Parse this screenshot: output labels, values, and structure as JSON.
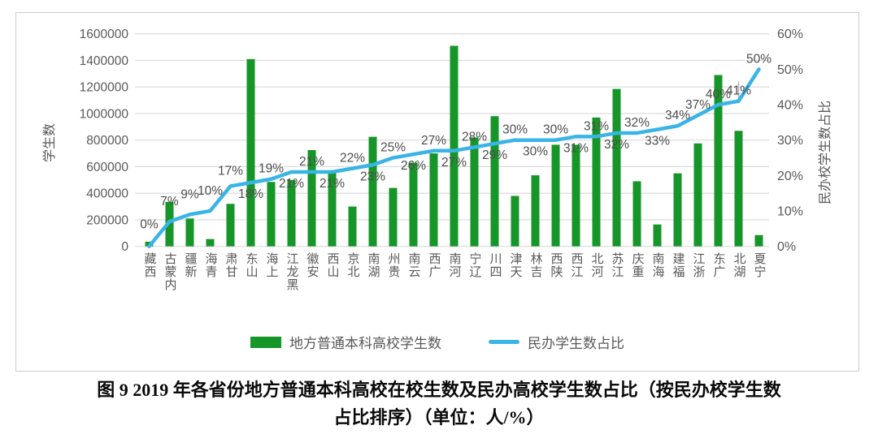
{
  "figure": {
    "caption_line1": "图 9  2019 年各省份地方普通本科高校在校生数及民办高校学生数占比（按民办校学生数",
    "caption_line2": "占比排序）（单位：人/%）"
  },
  "chart_data": {
    "type": "combo-bar-line",
    "title": "",
    "categories": [
      "西藏",
      "内蒙古",
      "新疆",
      "青海",
      "甘肃",
      "山东",
      "上海",
      "黑龙江",
      "安徽",
      "山西",
      "北京",
      "湖南",
      "贵州",
      "云南",
      "广西",
      "河南",
      "辽宁",
      "四川",
      "天津",
      "吉林",
      "陕西",
      "江西",
      "河北",
      "江苏",
      "重庆",
      "海南",
      "福建",
      "浙江",
      "广东",
      "湖北",
      "宁夏"
    ],
    "series": [
      {
        "name": "地方普通本科高校学生数",
        "type": "bar",
        "axis": "left",
        "color": "#169628",
        "values": [
          35000,
          335000,
          210000,
          55000,
          320000,
          1410000,
          485000,
          500000,
          725000,
          565000,
          300000,
          825000,
          440000,
          630000,
          700000,
          1510000,
          820000,
          980000,
          380000,
          535000,
          765000,
          765000,
          970000,
          1185000,
          490000,
          165000,
          550000,
          775000,
          1290000,
          870000,
          85000
        ]
      },
      {
        "name": "民办学生数占比",
        "type": "line",
        "axis": "right",
        "color": "#3AB4E7",
        "values": [
          0,
          7,
          9,
          10,
          17,
          18,
          19,
          21,
          21,
          21,
          22,
          23,
          25,
          26,
          27,
          27,
          28,
          29,
          30,
          30,
          30,
          31,
          31,
          32,
          32,
          33,
          34,
          37,
          40,
          41,
          50
        ],
        "labels": [
          "0%",
          "7%",
          "9%",
          "10%",
          "17%",
          "18%",
          "19%",
          "21%",
          "21%",
          "21%",
          "22%",
          "23%",
          "25%",
          "26%",
          "27%",
          "27%",
          "28%",
          "29%",
          "30%",
          "30%",
          "30%",
          "31%",
          "31%",
          "32%",
          "32%",
          "33%",
          "34%",
          "37%",
          "40%",
          "41%",
          "50%"
        ],
        "label_side": [
          "above",
          "above",
          "above",
          "above",
          "above",
          "below",
          "above",
          "below",
          "above",
          "below",
          "above",
          "below",
          "above",
          "below",
          "above",
          "below",
          "above",
          "below",
          "above",
          "below",
          "above",
          "below",
          "above",
          "below",
          "above",
          "below",
          "above",
          "above",
          "above",
          "above",
          "above"
        ]
      }
    ],
    "left_axis": {
      "title": "学生数",
      "min": 0,
      "max": 1600000,
      "tick_step": 200000,
      "ticks": [
        "0",
        "200000",
        "400000",
        "600000",
        "800000",
        "1000000",
        "1200000",
        "1400000",
        "1600000"
      ]
    },
    "right_axis": {
      "title": "民办校学生数占比",
      "min": 0,
      "max": 60,
      "unit": "%",
      "ticks": [
        "0%",
        "10%",
        "20%",
        "30%",
        "40%",
        "50%",
        "60%"
      ]
    },
    "grid": true,
    "legend_position": "bottom",
    "colors": {
      "grid": "#D9D9D9",
      "axis_text": "#595959",
      "data_label": "#4D4D4D"
    }
  }
}
